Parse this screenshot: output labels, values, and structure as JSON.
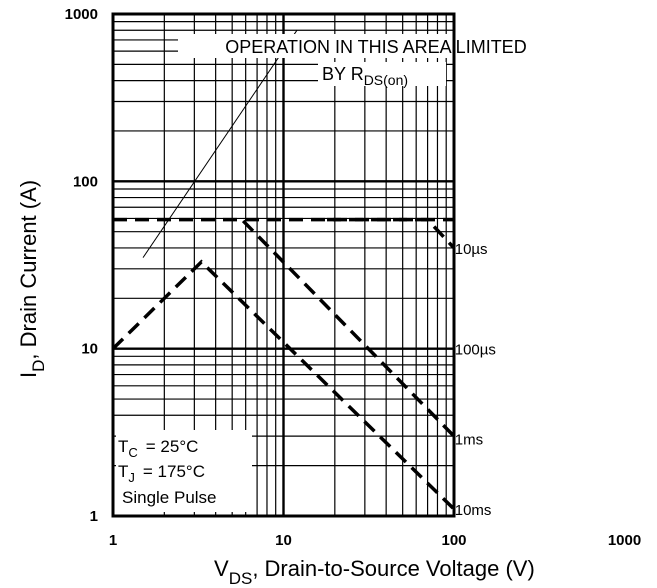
{
  "chart_data": {
    "type": "line",
    "x_scale": "log",
    "y_scale": "log",
    "xlim": [
      1,
      1000
    ],
    "ylim": [
      1,
      1000
    ],
    "grid": true,
    "x_ticks": [
      "1",
      "10",
      "100",
      "1000"
    ],
    "y_ticks": [
      "1",
      "10",
      "100",
      "1000"
    ],
    "xlabel": {
      "main": "V",
      "sub": "DS",
      "rest": ", Drain-to-Source Voltage (V)"
    },
    "ylabel": {
      "main": "I",
      "sub": "D",
      "rest": ", Drain Current (A)"
    },
    "annotation": {
      "line1": "OPERATION IN THIS AREA LIMITED",
      "line2": "BY R",
      "line2_sub": "DS(on)",
      "pointer_from": {
        "x": 1.5,
        "y": 35
      },
      "pointer_to": {
        "x": 12,
        "y": 800
      }
    },
    "conditions": {
      "tc_label": "T",
      "tc_sub": "C",
      "tc_value": "= 25°C",
      "tj_label": "T",
      "tj_sub": "J",
      "tj_value": "= 175°C",
      "pulse": "Single Pulse"
    },
    "series": [
      {
        "name": "10µs",
        "x": [
          1,
          100
        ],
        "y": [
          59,
          59
        ]
      },
      {
        "name": "100µs",
        "x": [
          18,
          70,
          100
        ],
        "y": [
          59,
          59,
          40
        ]
      },
      {
        "name": "1ms",
        "x": [
          5.8,
          100
        ],
        "y": [
          58,
          3
        ]
      },
      {
        "name": "10ms",
        "x": [
          1,
          3.3,
          100
        ],
        "y": [
          10,
          33,
          1.1
        ]
      }
    ],
    "curve_labels": [
      {
        "text": "10µs",
        "x": 101,
        "y": 40
      },
      {
        "text": "100µs",
        "x": 101,
        "y": 10
      },
      {
        "text": "1ms",
        "x": 101,
        "y": 2.9
      },
      {
        "text": "10ms",
        "x": 101,
        "y": 1.1
      }
    ]
  }
}
